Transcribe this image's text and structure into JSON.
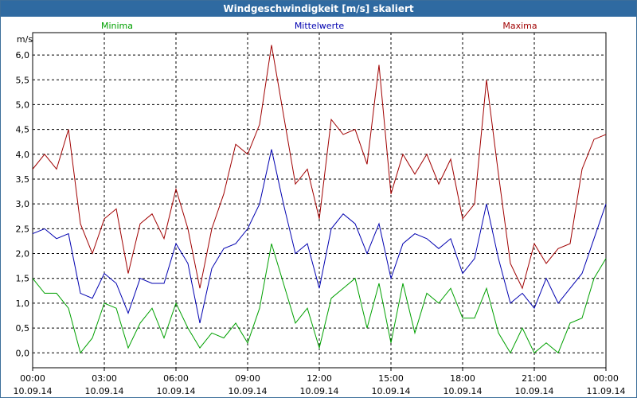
{
  "window": {
    "title": "Windgeschwindigkeit [m/s] skaliert"
  },
  "chart_data": {
    "type": "line",
    "title": "Windgeschwindigkeit [m/s] skaliert",
    "ylabel": "m/s",
    "xlabel": "",
    "ylim": [
      -0.3,
      6.45
    ],
    "xlim": [
      0,
      24
    ],
    "grid": true,
    "legend_placement": "top",
    "y_ticks": [
      "0,0",
      "0,5",
      "1,0",
      "1,5",
      "2,0",
      "2,5",
      "3,0",
      "3,5",
      "4,0",
      "4,5",
      "5,0",
      "5,5",
      "6,0"
    ],
    "x_ticks": [
      {
        "time": "00:00",
        "date": "10.09.14"
      },
      {
        "time": "03:00",
        "date": "10.09.14"
      },
      {
        "time": "06:00",
        "date": "10.09.14"
      },
      {
        "time": "09:00",
        "date": "10.09.14"
      },
      {
        "time": "12:00",
        "date": "10.09.14"
      },
      {
        "time": "15:00",
        "date": "10.09.14"
      },
      {
        "time": "18:00",
        "date": "10.09.14"
      },
      {
        "time": "21:00",
        "date": "10.09.14"
      },
      {
        "time": "00:00",
        "date": "11.09.14"
      }
    ],
    "x": [
      0,
      0.5,
      1,
      1.5,
      2,
      2.5,
      3,
      3.5,
      4,
      4.5,
      5,
      5.5,
      6,
      6.5,
      7,
      7.5,
      8,
      8.5,
      9,
      9.5,
      10,
      10.5,
      11,
      11.5,
      12,
      12.5,
      13,
      13.5,
      14,
      14.5,
      15,
      15.5,
      16,
      16.5,
      17,
      17.5,
      18,
      18.5,
      19,
      19.5,
      20,
      20.5,
      21,
      21.5,
      22,
      22.5,
      23,
      23.5,
      24
    ],
    "series": [
      {
        "name": "Minima",
        "color": "#00a000",
        "values": [
          1.5,
          1.2,
          1.2,
          0.9,
          0.0,
          0.3,
          1.0,
          0.9,
          0.1,
          0.6,
          0.9,
          0.3,
          1.0,
          0.5,
          0.1,
          0.4,
          0.3,
          0.6,
          0.2,
          0.9,
          2.2,
          1.4,
          0.6,
          0.9,
          0.1,
          1.1,
          1.3,
          1.5,
          0.5,
          1.4,
          0.2,
          1.4,
          0.4,
          1.2,
          1.0,
          1.3,
          0.7,
          0.7,
          1.3,
          0.4,
          0.0,
          0.5,
          0.0,
          0.2,
          0.0,
          0.6,
          0.7,
          1.5,
          1.9
        ]
      },
      {
        "name": "Mittelwerte",
        "color": "#0000b0",
        "values": [
          2.4,
          2.5,
          2.3,
          2.4,
          1.2,
          1.1,
          1.6,
          1.4,
          0.8,
          1.5,
          1.4,
          1.4,
          2.2,
          1.8,
          0.6,
          1.7,
          2.1,
          2.2,
          2.5,
          3.0,
          4.1,
          3.0,
          2.0,
          2.2,
          1.3,
          2.5,
          2.8,
          2.6,
          2.0,
          2.6,
          1.5,
          2.2,
          2.4,
          2.3,
          2.1,
          2.3,
          1.6,
          1.9,
          3.0,
          1.9,
          1.0,
          1.2,
          0.9,
          1.5,
          1.0,
          1.3,
          1.6,
          2.3,
          3.0
        ]
      },
      {
        "name": "Maxima",
        "color": "#a00000",
        "values": [
          3.7,
          4.0,
          3.7,
          4.5,
          2.6,
          2.0,
          2.7,
          2.9,
          1.6,
          2.6,
          2.8,
          2.3,
          3.3,
          2.5,
          1.3,
          2.5,
          3.2,
          4.2,
          4.0,
          4.6,
          6.2,
          4.8,
          3.4,
          3.7,
          2.7,
          4.7,
          4.4,
          4.5,
          3.8,
          5.8,
          3.2,
          4.0,
          3.6,
          4.0,
          3.4,
          3.9,
          2.7,
          3.0,
          5.5,
          3.6,
          1.8,
          1.3,
          2.2,
          1.8,
          2.1,
          2.2,
          3.7,
          4.3,
          4.4
        ]
      }
    ]
  }
}
